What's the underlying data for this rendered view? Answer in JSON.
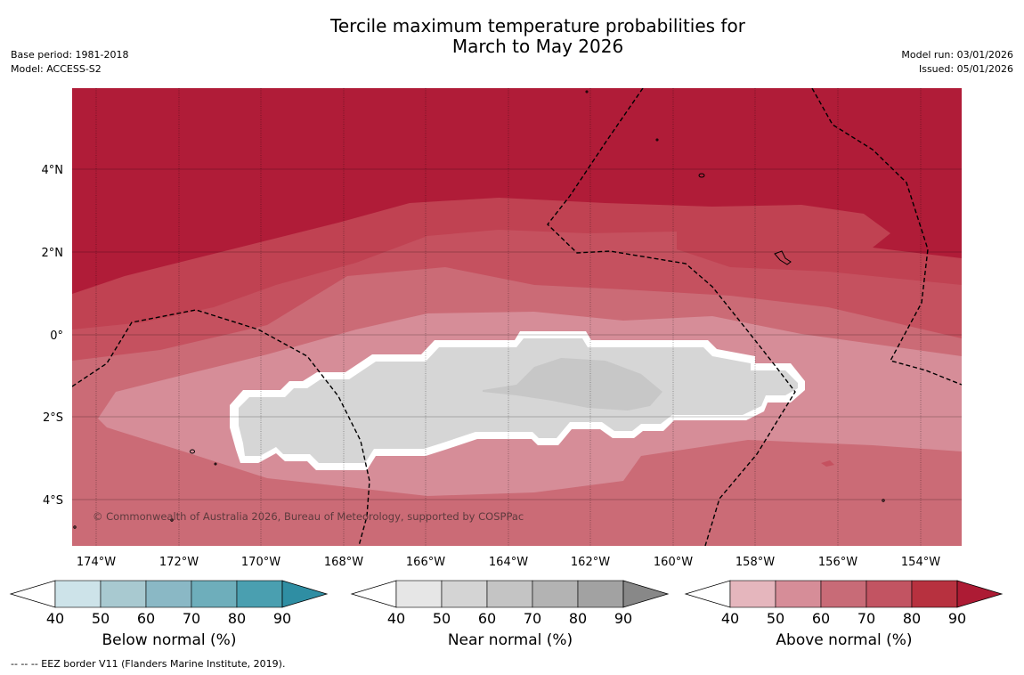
{
  "title_line1": "Tercile maximum temperature probabilities for",
  "title_line2": "March to May 2026",
  "base_period": "Base period: 1981-2018",
  "model": "Model: ACCESS-S2",
  "model_run": "Model run: 03/01/2026",
  "issued": "Issued: 05/01/2026",
  "lat_labels": [
    "4°N",
    "2°N",
    "0°",
    "2°S",
    "4°S"
  ],
  "lon_labels": [
    "174°W",
    "172°W",
    "170°W",
    "168°W",
    "166°W",
    "164°W",
    "162°W",
    "160°W",
    "158°W",
    "156°W",
    "154°W"
  ],
  "copyright": "© Commonwealth of Australia 2026, Bureau of Meteorology, supported by COSPPac",
  "colorbars": [
    {
      "title": "Below normal (%)",
      "ticks": [
        "40",
        "50",
        "60",
        "70",
        "80",
        "90"
      ],
      "colors": [
        "#cde3e9",
        "#a8c9d0",
        "#8ab8c5",
        "#6eaebb",
        "#4a9fb0"
      ],
      "arrow": "#2f8ea3"
    },
    {
      "title": "Near normal (%)",
      "ticks": [
        "40",
        "50",
        "60",
        "70",
        "80",
        "90"
      ],
      "colors": [
        "#e6e6e6",
        "#d4d4d4",
        "#c4c4c4",
        "#b3b3b3",
        "#a2a2a2"
      ],
      "arrow": "#888888"
    },
    {
      "title": "Above normal (%)",
      "ticks": [
        "40",
        "50",
        "60",
        "70",
        "80",
        "90"
      ],
      "colors": [
        "#e5b6bd",
        "#d68d98",
        "#c86b77",
        "#c25462",
        "#b7313f"
      ],
      "arrow": "#ad1b34"
    }
  ],
  "footnote": "--  --  -- EEZ border V11 (Flanders Marine Institute, 2019)."
}
